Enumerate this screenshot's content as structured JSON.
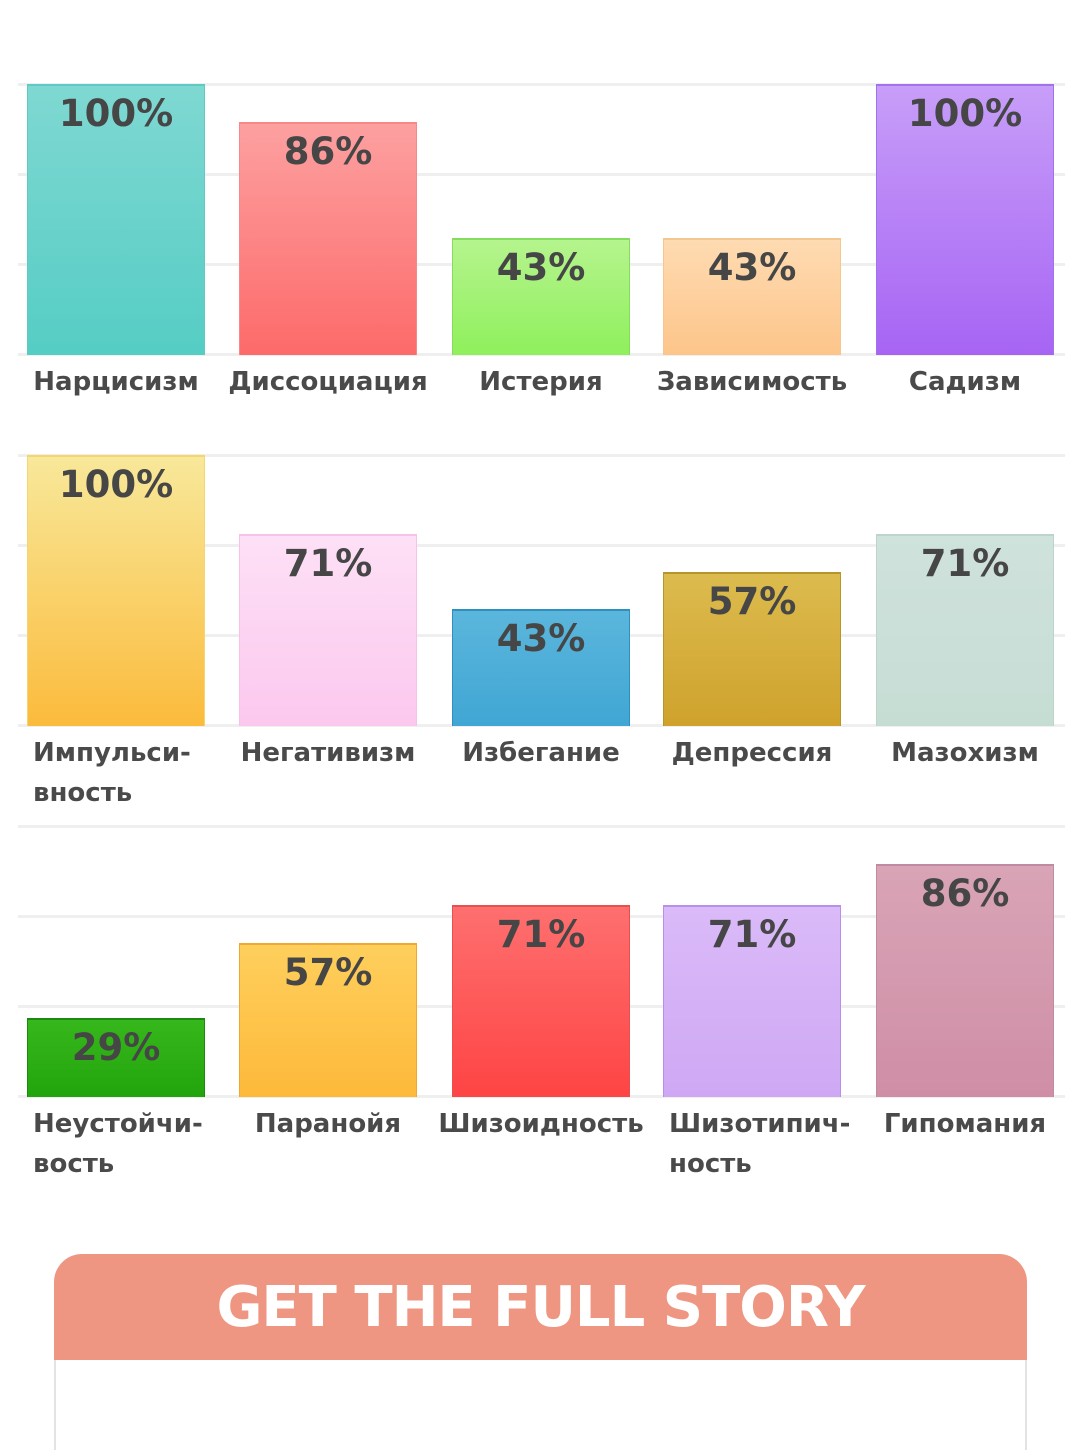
{
  "chart_data": [
    {
      "type": "bar",
      "categories": [
        "Нарцисизм",
        "Диссоциация",
        "Истерия",
        "Зависимость",
        "Садизм"
      ],
      "values": [
        100,
        86,
        43,
        43,
        100
      ],
      "value_labels": [
        "100%",
        "86%",
        "43%",
        "43%",
        "100%"
      ],
      "ylim": [
        0,
        100
      ],
      "grid": true,
      "colors": [
        [
          "#7fd8d2",
          "#55cdc4"
        ],
        [
          "#fda0a0",
          "#fd6a6a"
        ],
        [
          "#b5f48e",
          "#8ff05c"
        ],
        [
          "#fedbb2",
          "#fdc58a"
        ],
        [
          "#c79ef8",
          "#a764f4"
        ]
      ],
      "borders": [
        "#5fcac2",
        "#f78888",
        "#86dc5c",
        "#f4c690",
        "#a370ee"
      ]
    },
    {
      "type": "bar",
      "categories": [
        "Импульси-вность",
        "Негативизм",
        "Избегание",
        "Депрессия",
        "Мазохизм"
      ],
      "category_lines": [
        [
          "Импульси-",
          "вность"
        ],
        [
          "Негативизм"
        ],
        [
          "Избегание"
        ],
        [
          "Депрессия"
        ],
        [
          "Мазохизм"
        ]
      ],
      "values": [
        100,
        71,
        43,
        57,
        71
      ],
      "value_labels": [
        "100%",
        "71%",
        "43%",
        "57%",
        "71%"
      ],
      "ylim": [
        0,
        100
      ],
      "grid": true,
      "colors": [
        [
          "#f8e89a",
          "#fbbb3c"
        ],
        [
          "#fde0f6",
          "#fcc8ee"
        ],
        [
          "#5bb6dc",
          "#40a6d4"
        ],
        [
          "#dcbb4e",
          "#cfa22c"
        ],
        [
          "#cfe2dc",
          "#c6ddd4"
        ]
      ],
      "borders": [
        "#f4d66e",
        "#f7c2e8",
        "#2f8fbe",
        "#b8952a",
        "#bcd4cc"
      ]
    },
    {
      "type": "bar",
      "categories": [
        "Неустойчи-вость",
        "Паранойя",
        "Шизоидность",
        "Шизотипич-ность",
        "Гипомания"
      ],
      "category_lines": [
        [
          "Неустойчи-",
          "вость"
        ],
        [
          "Паранойя"
        ],
        [
          "Шизоидность"
        ],
        [
          "Шизотипич-",
          "ность"
        ],
        [
          "Гипомания"
        ]
      ],
      "values": [
        29,
        57,
        71,
        71,
        86
      ],
      "value_labels": [
        "29%",
        "57%",
        "71%",
        "71%",
        "86%"
      ],
      "ylim": [
        0,
        100
      ],
      "grid": true,
      "colors": [
        [
          "#36b81c",
          "#22a40c"
        ],
        [
          "#fecf5c",
          "#fdb93a"
        ],
        [
          "#fe6f6f",
          "#fe4444"
        ],
        [
          "#dabaf8",
          "#cfa8f4"
        ],
        [
          "#d9a4b6",
          "#cf8ea6"
        ]
      ],
      "borders": [
        "#1c8a10",
        "#f0a830",
        "#e85050",
        "#b890ec",
        "#c08aa0"
      ]
    }
  ],
  "cta": {
    "label": "GET THE FULL STORY"
  }
}
